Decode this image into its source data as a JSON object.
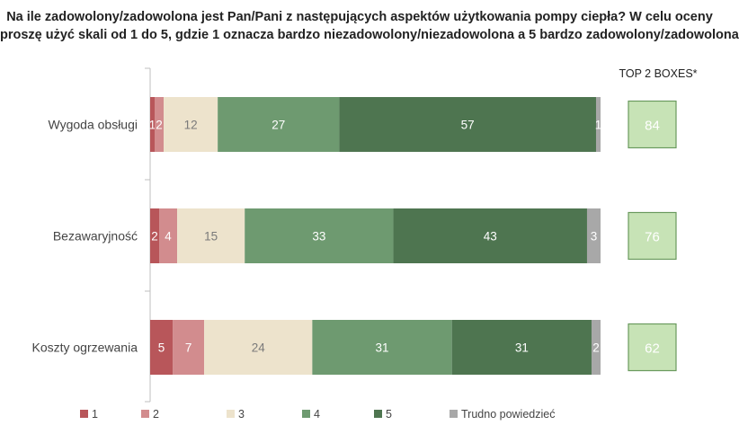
{
  "title_lines": [
    "Na ile zadowolony/zadowolona jest Pan/Pani z następujących aspektów użytkowania pompy ciepła? W celu oceny",
    "proszę użyć skali od 1 do 5, gdzie 1 oznacza bardzo niezadowolony/niezadowolona a 5 bardzo zadowolony/zadowolona"
  ],
  "top2_header": "TOP 2 BOXES*",
  "colors": {
    "1": "#b8565a",
    "2": "#d28c8e",
    "3": "#ede3cc",
    "4": "#6e9a70",
    "5": "#4e7550",
    "Trudno powiedzieć": "#a8a8a8",
    "top2_fill": "#c7e3b6",
    "top2_border": "#6a9a5e"
  },
  "chart_data": {
    "type": "bar",
    "orientation": "horizontal",
    "stacked": true,
    "xlim": [
      0,
      100
    ],
    "categories": [
      "Wygoda obsługi",
      "Bezawaryjność",
      "Koszty ogrzewania"
    ],
    "series": [
      {
        "name": "1",
        "values": [
          1,
          2,
          5
        ]
      },
      {
        "name": "2",
        "values": [
          2,
          4,
          7
        ]
      },
      {
        "name": "3",
        "values": [
          12,
          15,
          24
        ]
      },
      {
        "name": "4",
        "values": [
          27,
          33,
          31
        ]
      },
      {
        "name": "5",
        "values": [
          57,
          43,
          31
        ]
      },
      {
        "name": "Trudno powiedzieć",
        "values": [
          1,
          3,
          2
        ]
      }
    ],
    "top2_boxes": [
      84,
      76,
      62
    ],
    "legend": "bottom"
  }
}
